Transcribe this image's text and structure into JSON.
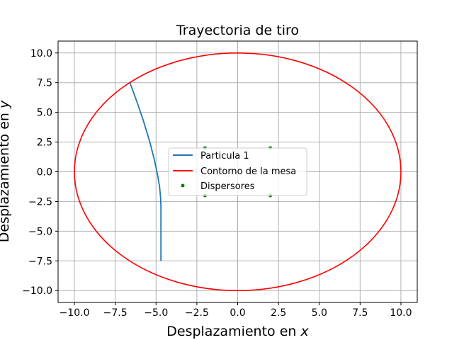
{
  "chart_data": {
    "type": "line",
    "title": "Trayectoria de tiro",
    "xlabel": "Desplazamiento en x",
    "ylabel": "Desplazamiento en y",
    "xlim": [
      -11,
      11
    ],
    "ylim": [
      -11,
      11
    ],
    "grid": true,
    "legend_position": "center",
    "xticks": [
      -10.0,
      -7.5,
      -5.0,
      -2.5,
      0.0,
      2.5,
      5.0,
      7.5,
      10.0
    ],
    "xtick_labels": [
      "−10.0",
      "−7.5",
      "−5.0",
      "−2.5",
      "0.0",
      "2.5",
      "5.0",
      "7.5",
      "10.0"
    ],
    "yticks": [
      10.0,
      7.5,
      5.0,
      2.5,
      0.0,
      -2.5,
      -5.0,
      -7.5,
      -10.0
    ],
    "ytick_labels": [
      "10.0",
      "7.5",
      "5.0",
      "2.5",
      "0.0",
      "−2.5",
      "−5.0",
      "−7.5",
      "−10.0"
    ],
    "series": [
      {
        "name": "Particula 1",
        "kind": "line",
        "color": "#1f77b4",
        "x": [
          -4.7,
          -4.7,
          -4.7,
          -4.7,
          -4.72,
          -4.78,
          -4.9,
          -5.1,
          -5.4,
          -5.8,
          -6.2,
          -6.6
        ],
        "y": [
          -7.5,
          -6.0,
          -4.5,
          -3.0,
          -2.2,
          -1.3,
          -0.3,
          1.0,
          2.6,
          4.4,
          6.0,
          7.5
        ]
      },
      {
        "name": "Contorno de la mesa",
        "kind": "circle",
        "color": "#ff0000",
        "center": [
          0,
          0
        ],
        "radius": 10
      },
      {
        "name": "Dispersores",
        "kind": "scatter",
        "color": "#008000",
        "x": [
          -2,
          2,
          -2,
          2
        ],
        "y": [
          2,
          2,
          -2,
          -2
        ]
      }
    ]
  }
}
